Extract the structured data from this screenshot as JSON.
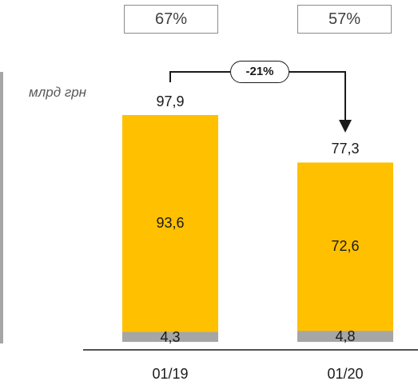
{
  "shares": [
    "67%",
    "57%"
  ],
  "unit_label": "млрд грн",
  "change_label": "-21%",
  "chart_data": {
    "type": "bar",
    "stacked": true,
    "categories": [
      "01/19",
      "01/20"
    ],
    "series": [
      {
        "values": [
          4.3,
          4.8
        ],
        "color": "#a6a6a6"
      },
      {
        "values": [
          93.6,
          72.6
        ],
        "color": "#ffc000"
      }
    ],
    "totals": [
      97.9,
      77.3
    ],
    "data_labels": {
      "bottom": [
        "4,3",
        "4,8"
      ],
      "top_segment": [
        "93,6",
        "72,6"
      ],
      "totals": [
        "97,9",
        "77,3"
      ]
    },
    "ylim": [
      0,
      97.9
    ],
    "title": "",
    "xlabel": "",
    "ylabel": ""
  }
}
